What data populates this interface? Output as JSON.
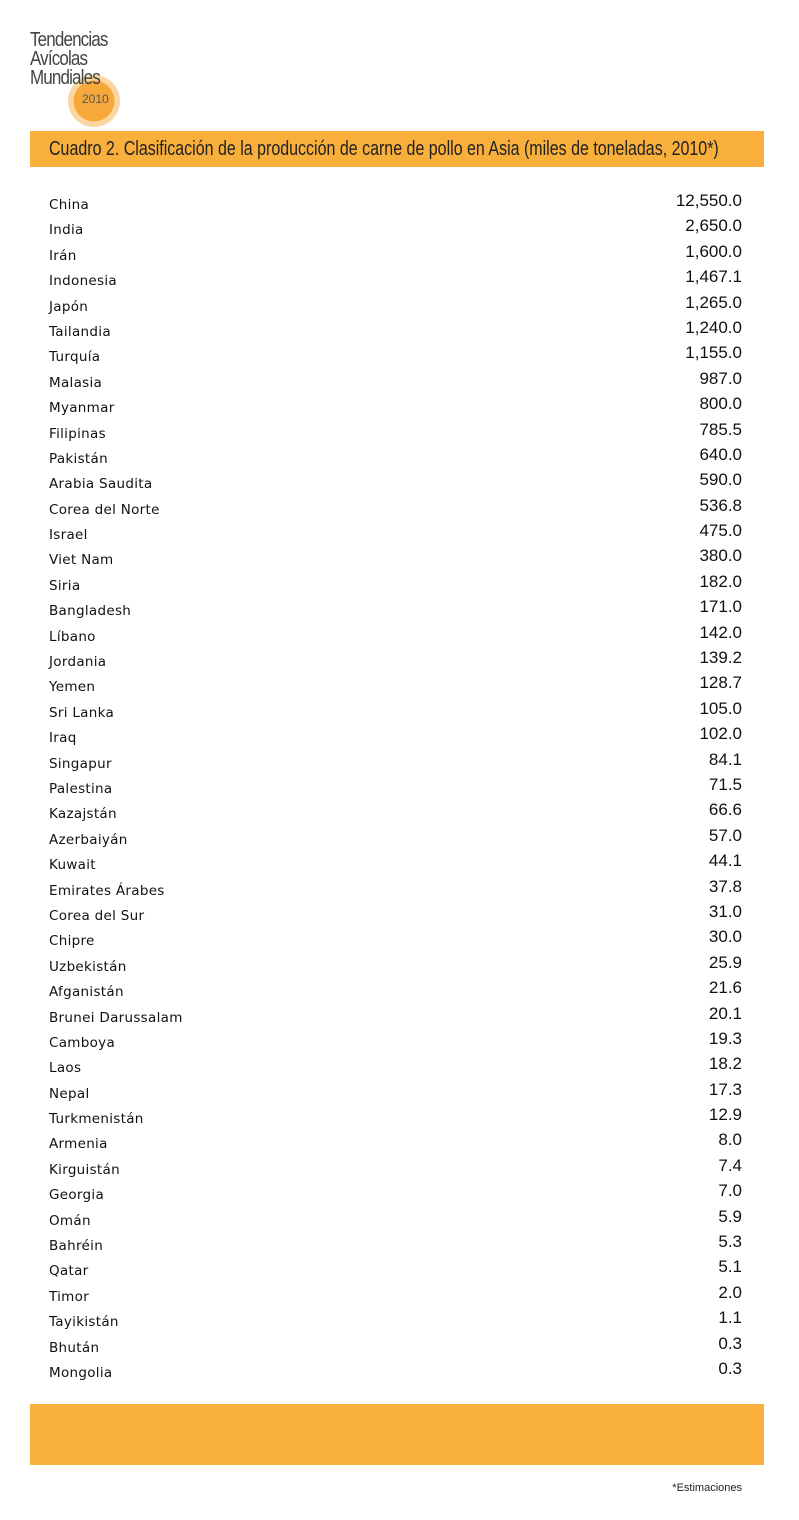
{
  "logo": {
    "line1": "Tendencias",
    "line2": "Avícolas",
    "line3": "Mundiales",
    "year": "2010"
  },
  "title": "Cuadro 2. Clasificación de la producción de carne de pollo en Asia (miles de toneladas, 2010*)",
  "rows": [
    {
      "country": "China",
      "value": "12,550.0"
    },
    {
      "country": "India",
      "value": "2,650.0"
    },
    {
      "country": "Irán",
      "value": "1,600.0"
    },
    {
      "country": "Indonesia",
      "value": "1,467.1"
    },
    {
      "country": "Japón",
      "value": "1,265.0"
    },
    {
      "country": "Tailandia",
      "value": "1,240.0"
    },
    {
      "country": "Turquía",
      "value": "1,155.0"
    },
    {
      "country": "Malasia",
      "value": "987.0"
    },
    {
      "country": "Myanmar",
      "value": "800.0"
    },
    {
      "country": "Filipinas",
      "value": "785.5"
    },
    {
      "country": "Pakistán",
      "value": "640.0"
    },
    {
      "country": "Arabia Saudita",
      "value": "590.0"
    },
    {
      "country": "Corea del Norte",
      "value": "536.8"
    },
    {
      "country": "Israel",
      "value": "475.0"
    },
    {
      "country": "Viet Nam",
      "value": "380.0"
    },
    {
      "country": "Siria",
      "value": "182.0"
    },
    {
      "country": "Bangladesh",
      "value": "171.0"
    },
    {
      "country": "Líbano",
      "value": "142.0"
    },
    {
      "country": "Jordania",
      "value": "139.2"
    },
    {
      "country": "Yemen",
      "value": "128.7"
    },
    {
      "country": "Sri Lanka",
      "value": "105.0"
    },
    {
      "country": "Iraq",
      "value": "102.0"
    },
    {
      "country": "Singapur",
      "value": "84.1"
    },
    {
      "country": "Palestina",
      "value": "71.5"
    },
    {
      "country": "Kazajstán",
      "value": "66.6"
    },
    {
      "country": "Azerbaiyán",
      "value": "57.0"
    },
    {
      "country": "Kuwait",
      "value": "44.1"
    },
    {
      "country": "Emirates Árabes",
      "value": "37.8"
    },
    {
      "country": "Corea del Sur",
      "value": "31.0"
    },
    {
      "country": "Chipre",
      "value": "30.0"
    },
    {
      "country": "Uzbekistán",
      "value": "25.9"
    },
    {
      "country": "Afganistán",
      "value": "21.6"
    },
    {
      "country": "Brunei Darussalam",
      "value": "20.1"
    },
    {
      "country": "Camboya",
      "value": "19.3"
    },
    {
      "country": "Laos",
      "value": "18.2"
    },
    {
      "country": "Nepal",
      "value": "17.3"
    },
    {
      "country": "Turkmenistán",
      "value": "12.9"
    },
    {
      "country": "Armenia",
      "value": "8.0"
    },
    {
      "country": "Kirguistán",
      "value": "7.4"
    },
    {
      "country": "Georgia",
      "value": "7.0"
    },
    {
      "country": "Omán",
      "value": "5.9"
    },
    {
      "country": "Bahréin",
      "value": "5.3"
    },
    {
      "country": "Qatar",
      "value": "5.1"
    },
    {
      "country": "Timor",
      "value": "2.0"
    },
    {
      "country": "Tayikistán",
      "value": "1.1"
    },
    {
      "country": "Bhután",
      "value": "0.3"
    },
    {
      "country": "Mongolia",
      "value": "0.3"
    }
  ],
  "footnote": "*Estimaciones",
  "colors": {
    "accent": "#f9af3c"
  }
}
